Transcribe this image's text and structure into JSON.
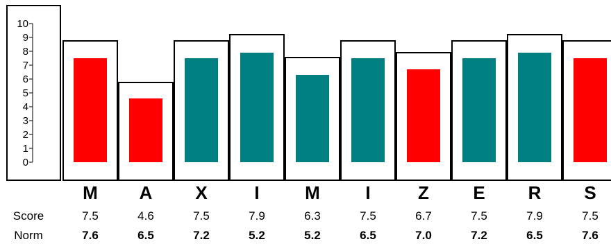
{
  "chart_data": {
    "type": "bar",
    "categories": [
      "M",
      "A",
      "X",
      "I",
      "M",
      "I",
      "Z",
      "E",
      "R",
      "S"
    ],
    "series": [
      {
        "values": [
          7.5,
          4.6,
          7.5,
          7.9,
          6.3,
          7.5,
          6.7,
          7.5,
          7.9,
          7.5
        ]
      }
    ],
    "outline_values": [
      8.75,
      5.75,
      8.75,
      9.2,
      7.55,
      8.75,
      7.9,
      8.75,
      9.2,
      8.75
    ],
    "bar_colors": [
      "#ff0000",
      "#ff0000",
      "#008080",
      "#008080",
      "#008080",
      "#008080",
      "#ff0000",
      "#008080",
      "#008080",
      "#ff0000"
    ],
    "yticks": [
      "0",
      "1",
      "2",
      "3",
      "4",
      "5",
      "6",
      "7",
      "8",
      "9",
      "10"
    ],
    "ylim": [
      0,
      10
    ],
    "grid": false,
    "rows": {
      "score_label": "Score",
      "norm_label": "Norm",
      "score": [
        "7.5",
        "4.6",
        "7.5",
        "7.9",
        "6.3",
        "7.5",
        "6.7",
        "7.5",
        "7.9",
        "7.5"
      ],
      "norm": [
        "7.6",
        "6.5",
        "7.2",
        "5.2",
        "5.2",
        "6.5",
        "7.0",
        "7.2",
        "6.5",
        "7.6"
      ]
    }
  }
}
